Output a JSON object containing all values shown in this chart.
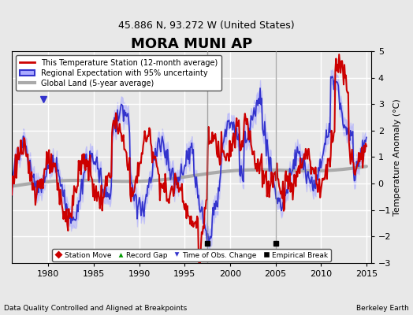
{
  "title": "MORA MUNI AP",
  "subtitle": "45.886 N, 93.272 W (United States)",
  "ylabel": "Temperature Anomaly (°C)",
  "xlim": [
    1976,
    2015.5
  ],
  "ylim": [
    -3,
    5
  ],
  "yticks": [
    -3,
    -2,
    -1,
    0,
    1,
    2,
    3,
    4,
    5
  ],
  "xticks": [
    1980,
    1985,
    1990,
    1995,
    2000,
    2005,
    2010,
    2015
  ],
  "background_color": "#e8e8e8",
  "plot_bg_color": "#e8e8e8",
  "grid_color": "#ffffff",
  "footnote_left": "Data Quality Controlled and Aligned at Breakpoints",
  "footnote_right": "Berkeley Earth",
  "empirical_breaks": [
    1997.5,
    2005.0
  ],
  "time_of_obs_changes": [
    1979.5
  ],
  "legend_items": [
    {
      "label": "This Temperature Station (12-month average)",
      "color": "#cc0000",
      "lw": 2
    },
    {
      "label": "Regional Expectation with 95% uncertainty",
      "color": "#4444cc",
      "lw": 2
    },
    {
      "label": "Global Land (5-year average)",
      "color": "#aaaaaa",
      "lw": 3
    }
  ]
}
